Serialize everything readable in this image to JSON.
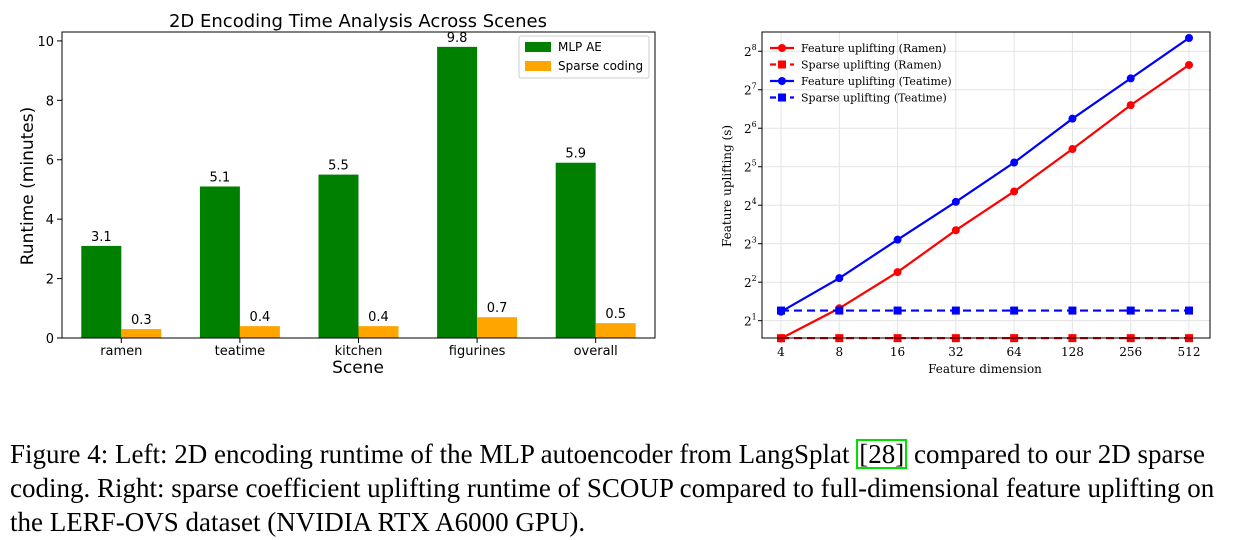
{
  "chart_data": [
    {
      "type": "bar",
      "title": "2D Encoding Time Analysis Across Scenes",
      "xlabel": "Scene",
      "ylabel": "Runtime (minutes)",
      "categories": [
        "ramen",
        "teatime",
        "kitchen",
        "figurines",
        "overall"
      ],
      "ylim": [
        0,
        10.3
      ],
      "yticks": [
        "0",
        "2",
        "4",
        "6",
        "8",
        "10"
      ],
      "legend_position": "top-right",
      "series": [
        {
          "name": "MLP AE",
          "color": "#008000",
          "values": [
            3.1,
            5.1,
            5.5,
            9.8,
            5.9
          ],
          "labels": [
            "3.1",
            "5.1",
            "5.5",
            "9.8",
            "5.9"
          ]
        },
        {
          "name": "Sparse coding",
          "color": "#ffa500",
          "values": [
            0.3,
            0.4,
            0.4,
            0.7,
            0.5
          ],
          "labels": [
            "0.3",
            "0.4",
            "0.4",
            "0.7",
            "0.5"
          ]
        }
      ]
    },
    {
      "type": "line",
      "xlabel": "Feature dimension",
      "ylabel": "Feature uplifting (s)",
      "x": [
        "4",
        "8",
        "16",
        "32",
        "64",
        "128",
        "256",
        "512"
      ],
      "yscale": "log2",
      "ylim_exp": [
        0.55,
        8.5
      ],
      "ytick_exponents": [
        "1",
        "2",
        "3",
        "4",
        "5",
        "6",
        "7",
        "8"
      ],
      "grid": true,
      "legend_position": "top-left",
      "series": [
        {
          "name": "Feature uplifting (Ramen)",
          "color": "#ff0000",
          "dash": false,
          "marker": "circle",
          "values": [
            1.45,
            2.5,
            4.8,
            10.2,
            20.5,
            44,
            97,
            200
          ]
        },
        {
          "name": "Sparse uplifting (Ramen)",
          "color": "#ff0000",
          "dash": true,
          "marker": "square",
          "values": [
            1.46,
            1.46,
            1.46,
            1.46,
            1.46,
            1.46,
            1.46,
            1.46
          ]
        },
        {
          "name": "Feature uplifting (Teatime)",
          "color": "#0000ff",
          "dash": false,
          "marker": "circle",
          "values": [
            2.35,
            4.3,
            8.6,
            17,
            34.5,
            76,
            157,
            325
          ]
        },
        {
          "name": "Sparse uplifting (Teatime)",
          "color": "#0000ff",
          "dash": true,
          "marker": "square",
          "values": [
            2.4,
            2.4,
            2.4,
            2.4,
            2.4,
            2.4,
            2.4,
            2.4
          ]
        }
      ]
    }
  ],
  "caption": {
    "before": "Figure 4: Left: 2D encoding runtime of the MLP autoencoder from LangSplat ",
    "cite_open": "[",
    "cite": "28",
    "cite_close": "]",
    "after": " compared to our 2D sparse coding. Right: sparse coefficient uplifting runtime of SCOUP compared to full-dimensional feature uplifting on the LERF-OVS dataset (NVIDIA RTX A6000 GPU)."
  }
}
